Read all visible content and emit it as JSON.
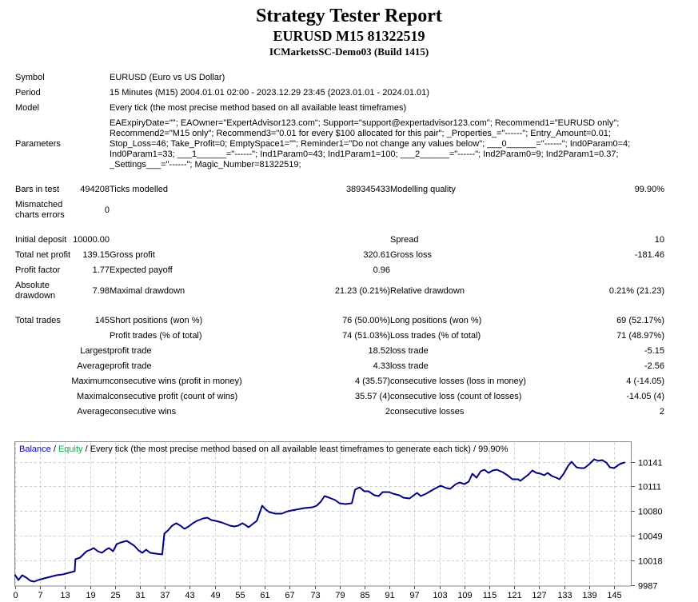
{
  "header": {
    "title": "Strategy Tester Report",
    "subtitle": "EURUSD M15 81322519",
    "server": "ICMarketsSC-Demo03 (Build 1415)"
  },
  "stats": {
    "rows": [
      {
        "type": "info",
        "label": "Symbol",
        "value": "EURUSD (Euro vs US Dollar)"
      },
      {
        "type": "info",
        "label": "Period",
        "value": "15 Minutes (M15) 2004.01.01 02:00 - 2023.12.29 23:45 (2023.01.01 - 2024.01.01)"
      },
      {
        "type": "info",
        "label": "Model",
        "value": "Every tick (the most precise method based on all available least timeframes)"
      },
      {
        "type": "info",
        "label": "Parameters",
        "value": "EAExpiryDate=\"\"; EAOwner=\"ExpertAdvisor123.com\"; Support=\"support@expertadvisor123.com\"; Recommend1=\"EURUSD only\"; Recommend2=\"M15 only\"; Recommend3=\"0.01 for every $100 allocated for this pair\"; _Properties_=\"------\"; Entry_Amount=0.01; Stop_Loss=46; Take_Profit=0; EmptySpace1=\"\"; Reminder1=\"Do not change any values below\"; ___0______=\"------\"; Ind0Param0=4; Ind0Param1=33; ___1______=\"------\"; Ind1Param0=43; Ind1Param1=100; ___2______=\"------\"; Ind2Param0=9; Ind2Param1=0.37; _Settings___=\"------\"; Magic_Number=81322519;"
      },
      {
        "type": "spacer"
      },
      {
        "type": "data",
        "cells": [
          "Bars in test",
          "494208",
          "Ticks modelled",
          "389345433",
          "Modelling quality",
          "99.90%"
        ]
      },
      {
        "type": "data",
        "cells": [
          "Mismatched charts errors",
          "0",
          "",
          "",
          "",
          ""
        ]
      },
      {
        "type": "spacer"
      },
      {
        "type": "data",
        "cells": [
          "Initial deposit",
          "10000.00",
          "",
          "",
          "Spread",
          "10"
        ]
      },
      {
        "type": "data",
        "cells": [
          "Total net profit",
          "139.15",
          "Gross profit",
          "320.61",
          "Gross loss",
          "-181.46"
        ]
      },
      {
        "type": "data",
        "cells": [
          "Profit factor",
          "1.77",
          "Expected payoff",
          "0.96",
          "",
          ""
        ]
      },
      {
        "type": "data",
        "cells": [
          "Absolute drawdown",
          "7.98",
          "Maximal drawdown",
          "21.23 (0.21%)",
          "Relative drawdown",
          "0.21% (21.23)"
        ]
      },
      {
        "type": "spacer"
      },
      {
        "type": "data",
        "cells": [
          "Total trades",
          "145",
          "Short positions (won %)",
          "76 (50.00%)",
          "Long positions (won %)",
          "69 (52.17%)"
        ]
      },
      {
        "type": "data",
        "cells": [
          "",
          "",
          "Profit trades (% of total)",
          "74 (51.03%)",
          "Loss trades (% of total)",
          "71 (48.97%)"
        ]
      },
      {
        "type": "data",
        "cells": [
          "",
          "Largest",
          "profit trade",
          "18.52",
          "loss trade",
          "-5.15"
        ]
      },
      {
        "type": "data",
        "cells": [
          "",
          "Average",
          "profit trade",
          "4.33",
          "loss trade",
          "-2.56"
        ]
      },
      {
        "type": "data",
        "cells": [
          "",
          "Maximum",
          "consecutive wins (profit in money)",
          "4 (35.57)",
          "consecutive losses (loss in money)",
          "4 (-14.05)"
        ]
      },
      {
        "type": "data",
        "cells": [
          "",
          "Maximal",
          "consecutive profit (count of wins)",
          "35.57 (4)",
          "consecutive loss (count of losses)",
          "-14.05 (4)"
        ]
      },
      {
        "type": "data",
        "cells": [
          "",
          "Average",
          "consecutive wins",
          "2",
          "consecutive losses",
          "2"
        ]
      }
    ]
  },
  "chart_data": {
    "type": "line",
    "legend": {
      "balance_label": "Balance",
      "separator": " / ",
      "equity_label": "Equity",
      "description": "Every tick (the most precise method based on all available least timeframes to generate each tick) / 99.90%",
      "balance_color": "#0000C8",
      "equity_color": "#00B050"
    },
    "xlabel": "",
    "ylabel": "",
    "x_ticks": [
      0,
      7,
      13,
      19,
      25,
      31,
      37,
      43,
      49,
      55,
      61,
      67,
      73,
      79,
      85,
      91,
      97,
      103,
      109,
      115,
      121,
      127,
      133,
      139,
      145
    ],
    "y_ticks": [
      10141,
      10111,
      10080,
      10049,
      10018,
      9987
    ],
    "x_range": [
      0,
      149
    ],
    "y_range": [
      9985,
      10168
    ],
    "grid": "dashed",
    "line_color": "#000080",
    "grid_color": "#cccccc",
    "border_color": "#888888",
    "series": [
      {
        "name": "Balance",
        "points": [
          [
            0,
            10000
          ],
          [
            0.8,
            9994
          ],
          [
            1.7,
            10000
          ],
          [
            2.7,
            9997
          ],
          [
            3.7,
            9993
          ],
          [
            4.6,
            9992
          ],
          [
            5.6,
            9994
          ],
          [
            7,
            9996
          ],
          [
            8.5,
            9998
          ],
          [
            10,
            10000
          ],
          [
            11.5,
            10001
          ],
          [
            13,
            10003
          ],
          [
            14.4,
            10005
          ],
          [
            14.6,
            10020
          ],
          [
            15.7,
            10022
          ],
          [
            16.5,
            10026
          ],
          [
            17.3,
            10030
          ],
          [
            18.3,
            10032
          ],
          [
            19,
            10034
          ],
          [
            20,
            10030
          ],
          [
            21,
            10028
          ],
          [
            22,
            10032
          ],
          [
            22.7,
            10034
          ],
          [
            23.7,
            10030
          ],
          [
            24.6,
            10039
          ],
          [
            25.6,
            10041
          ],
          [
            27,
            10043
          ],
          [
            28.8,
            10037
          ],
          [
            29.9,
            10031
          ],
          [
            30.8,
            10028
          ],
          [
            31.7,
            10032
          ],
          [
            32.7,
            10028
          ],
          [
            34,
            10027
          ],
          [
            35.6,
            10026
          ],
          [
            36.1,
            10052
          ],
          [
            37,
            10056
          ],
          [
            38,
            10062
          ],
          [
            39,
            10065
          ],
          [
            40,
            10062
          ],
          [
            41,
            10058
          ],
          [
            42,
            10061
          ],
          [
            43,
            10065
          ],
          [
            44,
            10068
          ],
          [
            45.5,
            10071
          ],
          [
            46.5,
            10072
          ],
          [
            47.5,
            10069
          ],
          [
            48.5,
            10068
          ],
          [
            50,
            10066
          ],
          [
            51,
            10064
          ],
          [
            52,
            10062
          ],
          [
            53,
            10061
          ],
          [
            54,
            10062
          ],
          [
            55,
            10065
          ],
          [
            55.7,
            10063
          ],
          [
            56.5,
            10060
          ],
          [
            57.5,
            10064
          ],
          [
            58.5,
            10068
          ],
          [
            59.8,
            10087
          ],
          [
            60.5,
            10083
          ],
          [
            61.5,
            10079
          ],
          [
            63,
            10077
          ],
          [
            64.5,
            10077
          ],
          [
            66,
            10080
          ],
          [
            68,
            10082
          ],
          [
            70,
            10084
          ],
          [
            72,
            10085
          ],
          [
            73,
            10087
          ],
          [
            74,
            10092
          ],
          [
            74.9,
            10099
          ],
          [
            76,
            10097
          ],
          [
            77.5,
            10094
          ],
          [
            78.5,
            10090
          ],
          [
            80,
            10089
          ],
          [
            81.5,
            10090
          ],
          [
            82.3,
            10107
          ],
          [
            83.4,
            10110
          ],
          [
            84.5,
            10105
          ],
          [
            85.5,
            10105
          ],
          [
            87,
            10100
          ],
          [
            88,
            10099
          ],
          [
            89,
            10104
          ],
          [
            90.5,
            10104
          ],
          [
            91.5,
            10102
          ],
          [
            93,
            10100
          ],
          [
            94,
            10097
          ],
          [
            95.5,
            10096
          ],
          [
            96.5,
            10100
          ],
          [
            97.3,
            10103
          ],
          [
            98.2,
            10099
          ],
          [
            99.5,
            10102
          ],
          [
            100.5,
            10105
          ],
          [
            101.5,
            10108
          ],
          [
            103,
            10112
          ],
          [
            104.4,
            10109
          ],
          [
            105.3,
            10108
          ],
          [
            106.7,
            10114
          ],
          [
            107.6,
            10116
          ],
          [
            108.8,
            10114
          ],
          [
            109.8,
            10117
          ],
          [
            110.7,
            10127
          ],
          [
            111.7,
            10122
          ],
          [
            112.7,
            10130
          ],
          [
            113.6,
            10132
          ],
          [
            114.6,
            10128
          ],
          [
            115.6,
            10131
          ],
          [
            116.6,
            10132
          ],
          [
            118,
            10129
          ],
          [
            119.2,
            10125
          ],
          [
            120.4,
            10120
          ],
          [
            121.8,
            10120
          ],
          [
            122.3,
            10118
          ],
          [
            123.3,
            10122
          ],
          [
            124.3,
            10126
          ],
          [
            125.2,
            10131
          ],
          [
            126.2,
            10128
          ],
          [
            127.2,
            10127
          ],
          [
            128.1,
            10125
          ],
          [
            128.9,
            10128
          ],
          [
            130,
            10124
          ],
          [
            131,
            10122
          ],
          [
            131.8,
            10120
          ],
          [
            132.8,
            10127
          ],
          [
            133.9,
            10137
          ],
          [
            134.7,
            10142
          ],
          [
            135.9,
            10135
          ],
          [
            136.9,
            10134
          ],
          [
            137.8,
            10134
          ],
          [
            138.8,
            10138
          ],
          [
            140.2,
            10145
          ],
          [
            141.1,
            10143
          ],
          [
            142.1,
            10144
          ],
          [
            143.1,
            10141
          ],
          [
            144,
            10135
          ],
          [
            145,
            10134
          ],
          [
            146.4,
            10139
          ],
          [
            147.5,
            10141
          ]
        ]
      }
    ]
  }
}
